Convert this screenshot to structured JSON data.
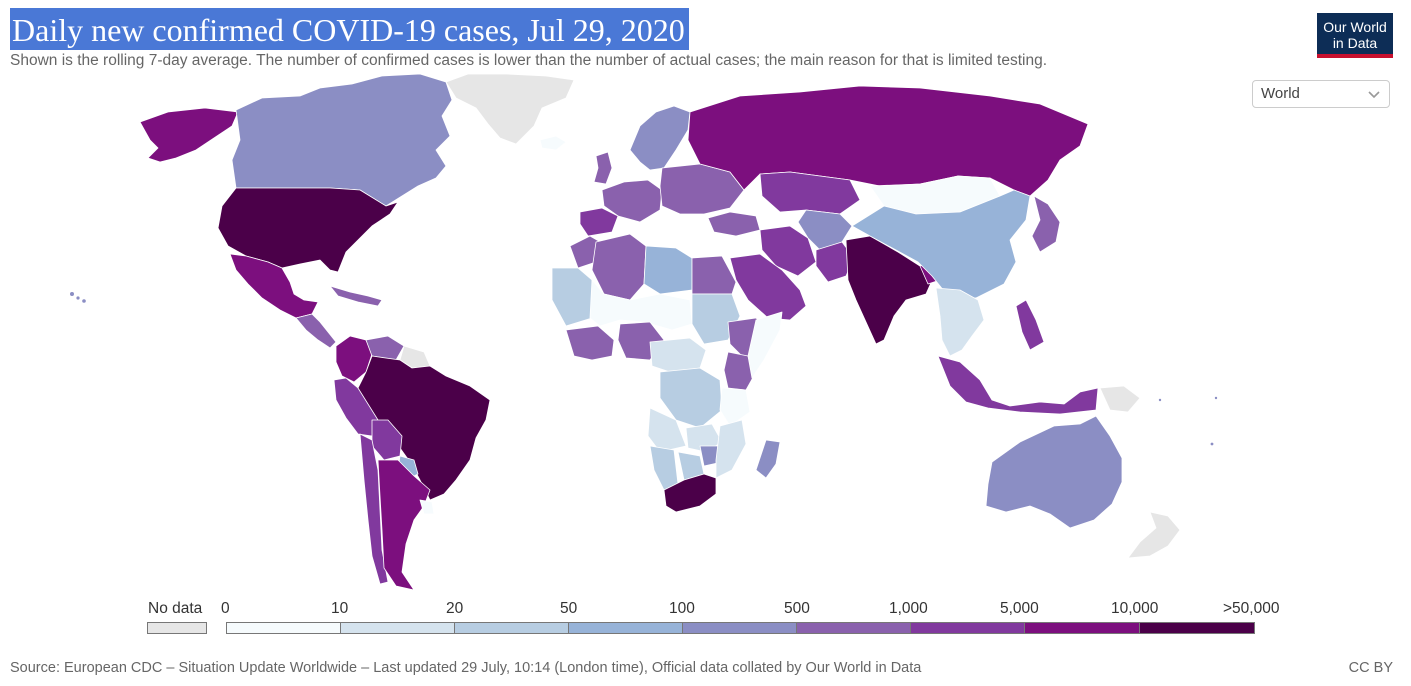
{
  "header": {
    "title": "Daily new confirmed COVID-19 cases, Jul 29, 2020",
    "subtitle": "Shown is the rolling 7-day average. The number of confirmed cases is lower than the number of actual cases; the main reason for that is limited testing."
  },
  "logo": {
    "line1": "Our World",
    "line2": "in Data"
  },
  "region_select": {
    "value": "World"
  },
  "legend": {
    "no_data_label": "No data",
    "no_data_color": "#e6e6e6",
    "ticks": [
      "0",
      "10",
      "20",
      "50",
      "100",
      "500",
      "1,000",
      "5,000",
      "10,000",
      ">50,000"
    ],
    "colors": [
      "#f6fbfd",
      "#d5e3ee",
      "#b7cde2",
      "#97b3d8",
      "#8b8ec4",
      "#8a61ad",
      "#81399e",
      "#7c0f7e",
      "#4b0049"
    ]
  },
  "footer": {
    "source": "Source: European CDC – Situation Update Worldwide – Last updated 29 July, 10:14 (London time), Official data collated by Our World in Data",
    "license": "CC BY"
  },
  "map_data": {
    "metric": "Daily new confirmed COVID-19 cases (7-day average)",
    "date": "Jul 29, 2020",
    "regions": [
      {
        "name": "Alaska",
        "bin": 8
      },
      {
        "name": "Canada",
        "bin": 5
      },
      {
        "name": "United States",
        "bin": 9
      },
      {
        "name": "Mexico",
        "bin": 8
      },
      {
        "name": "Central America",
        "bin": 6
      },
      {
        "name": "Caribbean",
        "bin": 6
      },
      {
        "name": "Colombia",
        "bin": 8
      },
      {
        "name": "Venezuela",
        "bin": 6
      },
      {
        "name": "Guianas",
        "bin": 0
      },
      {
        "name": "Peru",
        "bin": 7
      },
      {
        "name": "Brazil",
        "bin": 9
      },
      {
        "name": "Bolivia",
        "bin": 7
      },
      {
        "name": "Paraguay",
        "bin": 4
      },
      {
        "name": "Chile",
        "bin": 7
      },
      {
        "name": "Argentina",
        "bin": 8
      },
      {
        "name": "Uruguay",
        "bin": 1
      },
      {
        "name": "Greenland",
        "bin": 0
      },
      {
        "name": "Iceland",
        "bin": 1
      },
      {
        "name": "Scandinavia",
        "bin": 5
      },
      {
        "name": "United Kingdom",
        "bin": 6
      },
      {
        "name": "Western Europe",
        "bin": 6
      },
      {
        "name": "Spain",
        "bin": 7
      },
      {
        "name": "Eastern Europe",
        "bin": 6
      },
      {
        "name": "Russia",
        "bin": 8
      },
      {
        "name": "Kazakhstan",
        "bin": 7
      },
      {
        "name": "Turkey",
        "bin": 6
      },
      {
        "name": "Iran",
        "bin": 7
      },
      {
        "name": "Saudi Arabia",
        "bin": 7
      },
      {
        "name": "Central Asia",
        "bin": 5
      },
      {
        "name": "Pakistan",
        "bin": 7
      },
      {
        "name": "India",
        "bin": 9
      },
      {
        "name": "Bangladesh",
        "bin": 8
      },
      {
        "name": "Mongolia",
        "bin": 1
      },
      {
        "name": "China",
        "bin": 4
      },
      {
        "name": "Japan",
        "bin": 6
      },
      {
        "name": "Southeast Asia",
        "bin": 2
      },
      {
        "name": "Philippines",
        "bin": 7
      },
      {
        "name": "Indonesia",
        "bin": 7
      },
      {
        "name": "Papua New Guinea",
        "bin": 0
      },
      {
        "name": "Australia",
        "bin": 5
      },
      {
        "name": "New Zealand",
        "bin": 0
      },
      {
        "name": "Morocco",
        "bin": 6
      },
      {
        "name": "Algeria",
        "bin": 6
      },
      {
        "name": "Libya",
        "bin": 4
      },
      {
        "name": "Egypt",
        "bin": 6
      },
      {
        "name": "West Sahara",
        "bin": 3
      },
      {
        "name": "Sahel",
        "bin": 1
      },
      {
        "name": "Sudan",
        "bin": 3
      },
      {
        "name": "Nigeria",
        "bin": 6
      },
      {
        "name": "Ghana",
        "bin": 6
      },
      {
        "name": "Ethiopia",
        "bin": 6
      },
      {
        "name": "Kenya",
        "bin": 6
      },
      {
        "name": "Somalia",
        "bin": 1
      },
      {
        "name": "Central Africa",
        "bin": 2
      },
      {
        "name": "DR Congo",
        "bin": 3
      },
      {
        "name": "Angola",
        "bin": 2
      },
      {
        "name": "Tanzania",
        "bin": 1
      },
      {
        "name": "Zambia",
        "bin": 2
      },
      {
        "name": "Namibia",
        "bin": 3
      },
      {
        "name": "Botswana",
        "bin": 3
      },
      {
        "name": "Zimbabwe",
        "bin": 5
      },
      {
        "name": "Mozambique",
        "bin": 2
      },
      {
        "name": "Madagascar",
        "bin": 5
      },
      {
        "name": "South Africa",
        "bin": 9
      }
    ]
  }
}
